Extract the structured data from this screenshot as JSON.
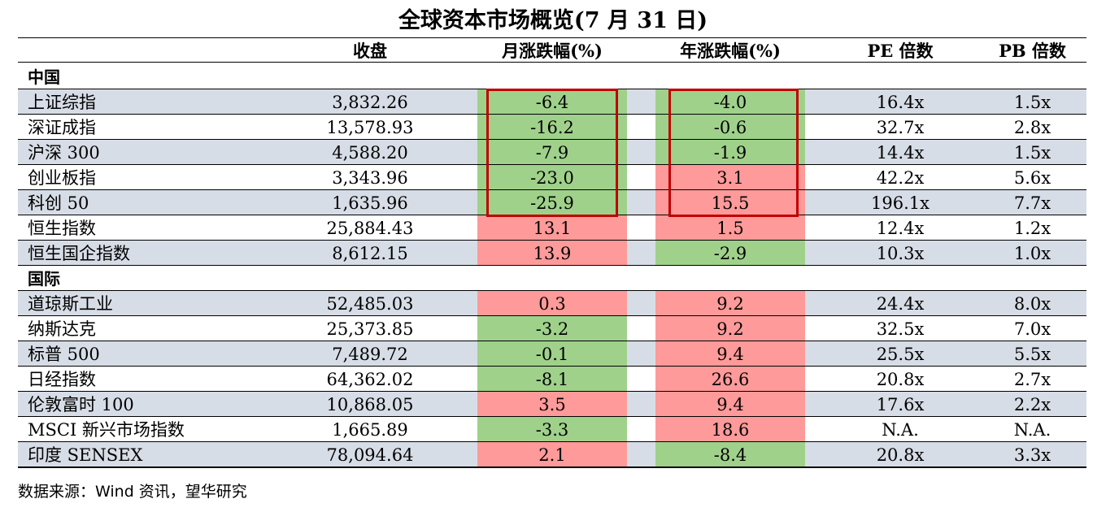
{
  "title": "全球资本市场概览(7 月 31 日)",
  "headers": {
    "close": "收盘",
    "mon": "月涨跌幅(%)",
    "yr": "年涨跌幅(%)",
    "pe": "PE 倍数",
    "pb": "PB 倍数"
  },
  "sections": {
    "china": "中国",
    "intl": "国际"
  },
  "rows": [
    {
      "name": "上证综指",
      "close": "3,832.26",
      "mon": "-6.4",
      "yr": "-4.0",
      "pe": "16.4x",
      "pb": "1.5x"
    },
    {
      "name": "深证成指",
      "close": "13,578.93",
      "mon": "-16.2",
      "yr": "-0.6",
      "pe": "32.7x",
      "pb": "2.8x"
    },
    {
      "name": "沪深 300",
      "close": "4,588.20",
      "mon": "-7.9",
      "yr": "-1.9",
      "pe": "14.4x",
      "pb": "1.5x"
    },
    {
      "name": "创业板指",
      "close": "3,343.96",
      "mon": "-23.0",
      "yr": "3.1",
      "pe": "42.2x",
      "pb": "5.6x"
    },
    {
      "name": "科创 50",
      "close": "1,635.96",
      "mon": "-25.9",
      "yr": "15.5",
      "pe": "196.1x",
      "pb": "7.7x"
    },
    {
      "name": "恒生指数",
      "close": "25,884.43",
      "mon": "13.1",
      "yr": "1.5",
      "pe": "12.4x",
      "pb": "1.2x"
    },
    {
      "name": "恒生国企指数",
      "close": "8,612.15",
      "mon": "13.9",
      "yr": "-2.9",
      "pe": "10.3x",
      "pb": "1.0x"
    },
    {
      "name": "道琼斯工业",
      "close": "52,485.03",
      "mon": "0.3",
      "yr": "9.2",
      "pe": "24.4x",
      "pb": "8.0x"
    },
    {
      "name": "纳斯达克",
      "close": "25,373.85",
      "mon": "-3.2",
      "yr": "9.2",
      "pe": "32.5x",
      "pb": "7.0x"
    },
    {
      "name": "标普 500",
      "close": "7,489.72",
      "mon": "-0.1",
      "yr": "9.4",
      "pe": "25.5x",
      "pb": "5.5x"
    },
    {
      "name": "日经指数",
      "close": "64,362.02",
      "mon": "-8.1",
      "yr": "26.6",
      "pe": "20.8x",
      "pb": "2.7x"
    },
    {
      "name": "伦敦富时 100",
      "close": "10,868.05",
      "mon": "3.5",
      "yr": "9.4",
      "pe": "17.6x",
      "pb": "2.2x"
    },
    {
      "name": "MSCI 新兴市场指数",
      "close": "1,665.89",
      "mon": "-3.3",
      "yr": "18.6",
      "pe": "N.A.",
      "pb": "N.A."
    },
    {
      "name": "印度 SENSEX",
      "close": "78,094.64",
      "mon": "2.1",
      "yr": "-8.4",
      "pe": "20.8x",
      "pb": "3.3x"
    }
  ],
  "colors": {
    "positive": "#fe9a99",
    "negative": "#9fd18b",
    "band": "#d7dde6",
    "highlight_box": "#c00000"
  },
  "source": "数据来源：Wind 资讯，望华研究"
}
